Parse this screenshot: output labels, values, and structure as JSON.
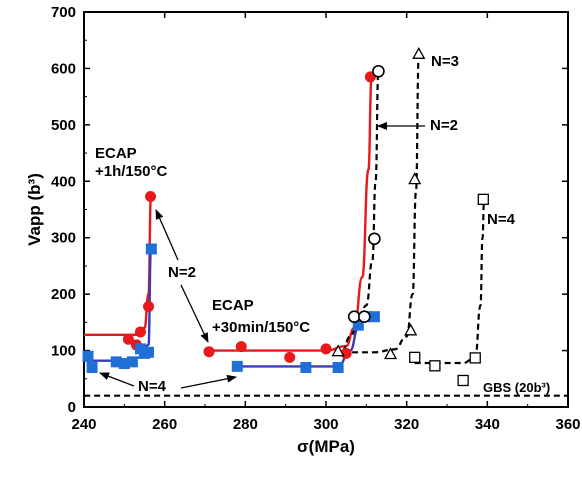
{
  "chart_data": {
    "type": "scatter",
    "xlabel": "σ(MPa)",
    "ylabel": "Vapp (b³)",
    "xlim": [
      240,
      360
    ],
    "ylim": [
      0,
      700
    ],
    "x_ticks": [
      240,
      260,
      280,
      300,
      320,
      340,
      360
    ],
    "y_ticks": [
      0,
      100,
      200,
      300,
      400,
      500,
      600,
      700
    ],
    "grid": false,
    "colors": {
      "red": "#e8191a",
      "blue": "#1f6fd6",
      "navy": "#3a3ab8",
      "black": "#000000"
    },
    "series": [
      {
        "marker": "filled-circle",
        "color": "#e8191a",
        "points": [
          [
            251,
            120
          ],
          [
            253,
            110
          ],
          [
            254,
            133
          ],
          [
            256,
            178
          ],
          [
            256.5,
            373
          ],
          [
            271,
            98
          ],
          [
            279,
            107
          ],
          [
            291,
            88
          ],
          [
            300,
            103
          ],
          [
            305,
            95
          ],
          [
            311,
            585
          ]
        ]
      },
      {
        "marker": "filled-square",
        "color": "#1f6fd6",
        "points": [
          [
            241,
            90
          ],
          [
            242,
            70
          ],
          [
            248,
            80
          ],
          [
            250,
            77
          ],
          [
            252,
            80
          ],
          [
            254,
            103
          ],
          [
            255,
            95
          ],
          [
            256,
            97
          ],
          [
            256.7,
            280
          ],
          [
            278,
            72
          ],
          [
            295,
            70
          ],
          [
            303,
            70
          ],
          [
            308,
            145
          ],
          [
            310,
            160
          ],
          [
            312,
            160
          ]
        ]
      },
      {
        "marker": "open-circle",
        "color": "#000000",
        "points": [
          [
            307,
            160
          ],
          [
            309.5,
            160
          ],
          [
            312,
            298
          ],
          [
            313,
            595
          ]
        ]
      },
      {
        "marker": "open-triangle",
        "color": "#000000",
        "points": [
          [
            303,
            98
          ],
          [
            316,
            93
          ],
          [
            321,
            135
          ],
          [
            322,
            403
          ],
          [
            323,
            625
          ]
        ]
      },
      {
        "marker": "open-square",
        "color": "#000000",
        "points": [
          [
            322,
            88
          ],
          [
            327,
            73
          ],
          [
            334,
            47
          ],
          [
            337,
            87
          ],
          [
            339,
            368
          ]
        ]
      }
    ],
    "fit_curves": [
      {
        "color": "#e8191a",
        "style": "solid",
        "points": [
          [
            240,
            128
          ],
          [
            250,
            128
          ],
          [
            253,
            128
          ],
          [
            255,
            140
          ],
          [
            256,
            200
          ],
          [
            256.6,
            373
          ]
        ]
      },
      {
        "color": "#e8191a",
        "style": "solid",
        "points": [
          [
            270,
            100
          ],
          [
            300,
            100
          ],
          [
            305,
            108
          ],
          [
            307,
            140
          ],
          [
            309,
            230
          ],
          [
            310.5,
            420
          ],
          [
            311.3,
            585
          ]
        ]
      },
      {
        "color": "#3a3ab8",
        "style": "solid",
        "points": [
          [
            240,
            82
          ],
          [
            250,
            82
          ],
          [
            254,
            88
          ],
          [
            256,
            110
          ],
          [
            256.6,
            280
          ]
        ]
      },
      {
        "color": "#3a3ab8",
        "style": "solid",
        "points": [
          [
            278,
            72
          ],
          [
            303,
            72
          ],
          [
            306,
            100
          ],
          [
            308,
            140
          ],
          [
            310,
            158
          ],
          [
            312,
            160
          ]
        ]
      },
      {
        "color": "#000000",
        "style": "dashed",
        "points": [
          [
            304,
            100
          ],
          [
            306,
            125
          ],
          [
            308,
            150
          ],
          [
            310,
            180
          ],
          [
            311.5,
            260
          ],
          [
            312.3,
            400
          ],
          [
            313,
            595
          ]
        ]
      },
      {
        "color": "#000000",
        "style": "dashed",
        "points": [
          [
            304,
            97
          ],
          [
            312,
            97
          ],
          [
            317,
            102
          ],
          [
            320,
            125
          ],
          [
            321.5,
            200
          ],
          [
            322.3,
            380
          ],
          [
            323,
            625
          ]
        ]
      },
      {
        "color": "#000000",
        "style": "dashed",
        "points": [
          [
            322,
            78
          ],
          [
            334,
            78
          ],
          [
            337,
            88
          ],
          [
            338.3,
            180
          ],
          [
            338.8,
            300
          ],
          [
            339.2,
            368
          ]
        ]
      },
      {
        "color": "#000000",
        "style": "dashed",
        "points": [
          [
            240,
            20
          ],
          [
            360,
            20
          ]
        ]
      }
    ],
    "annotations": {
      "ecap1_line1": "ECAP",
      "ecap1_line2": "+1h/150°C",
      "ecap2_line1": "ECAP",
      "ecap2_line2": "+30min/150°C",
      "n2_left": "N=2",
      "n2_right": "N=2",
      "n3": "N=3",
      "n4_right": "N=4",
      "n4_left": "N=4",
      "gbs": "GBS (20b³)"
    }
  }
}
